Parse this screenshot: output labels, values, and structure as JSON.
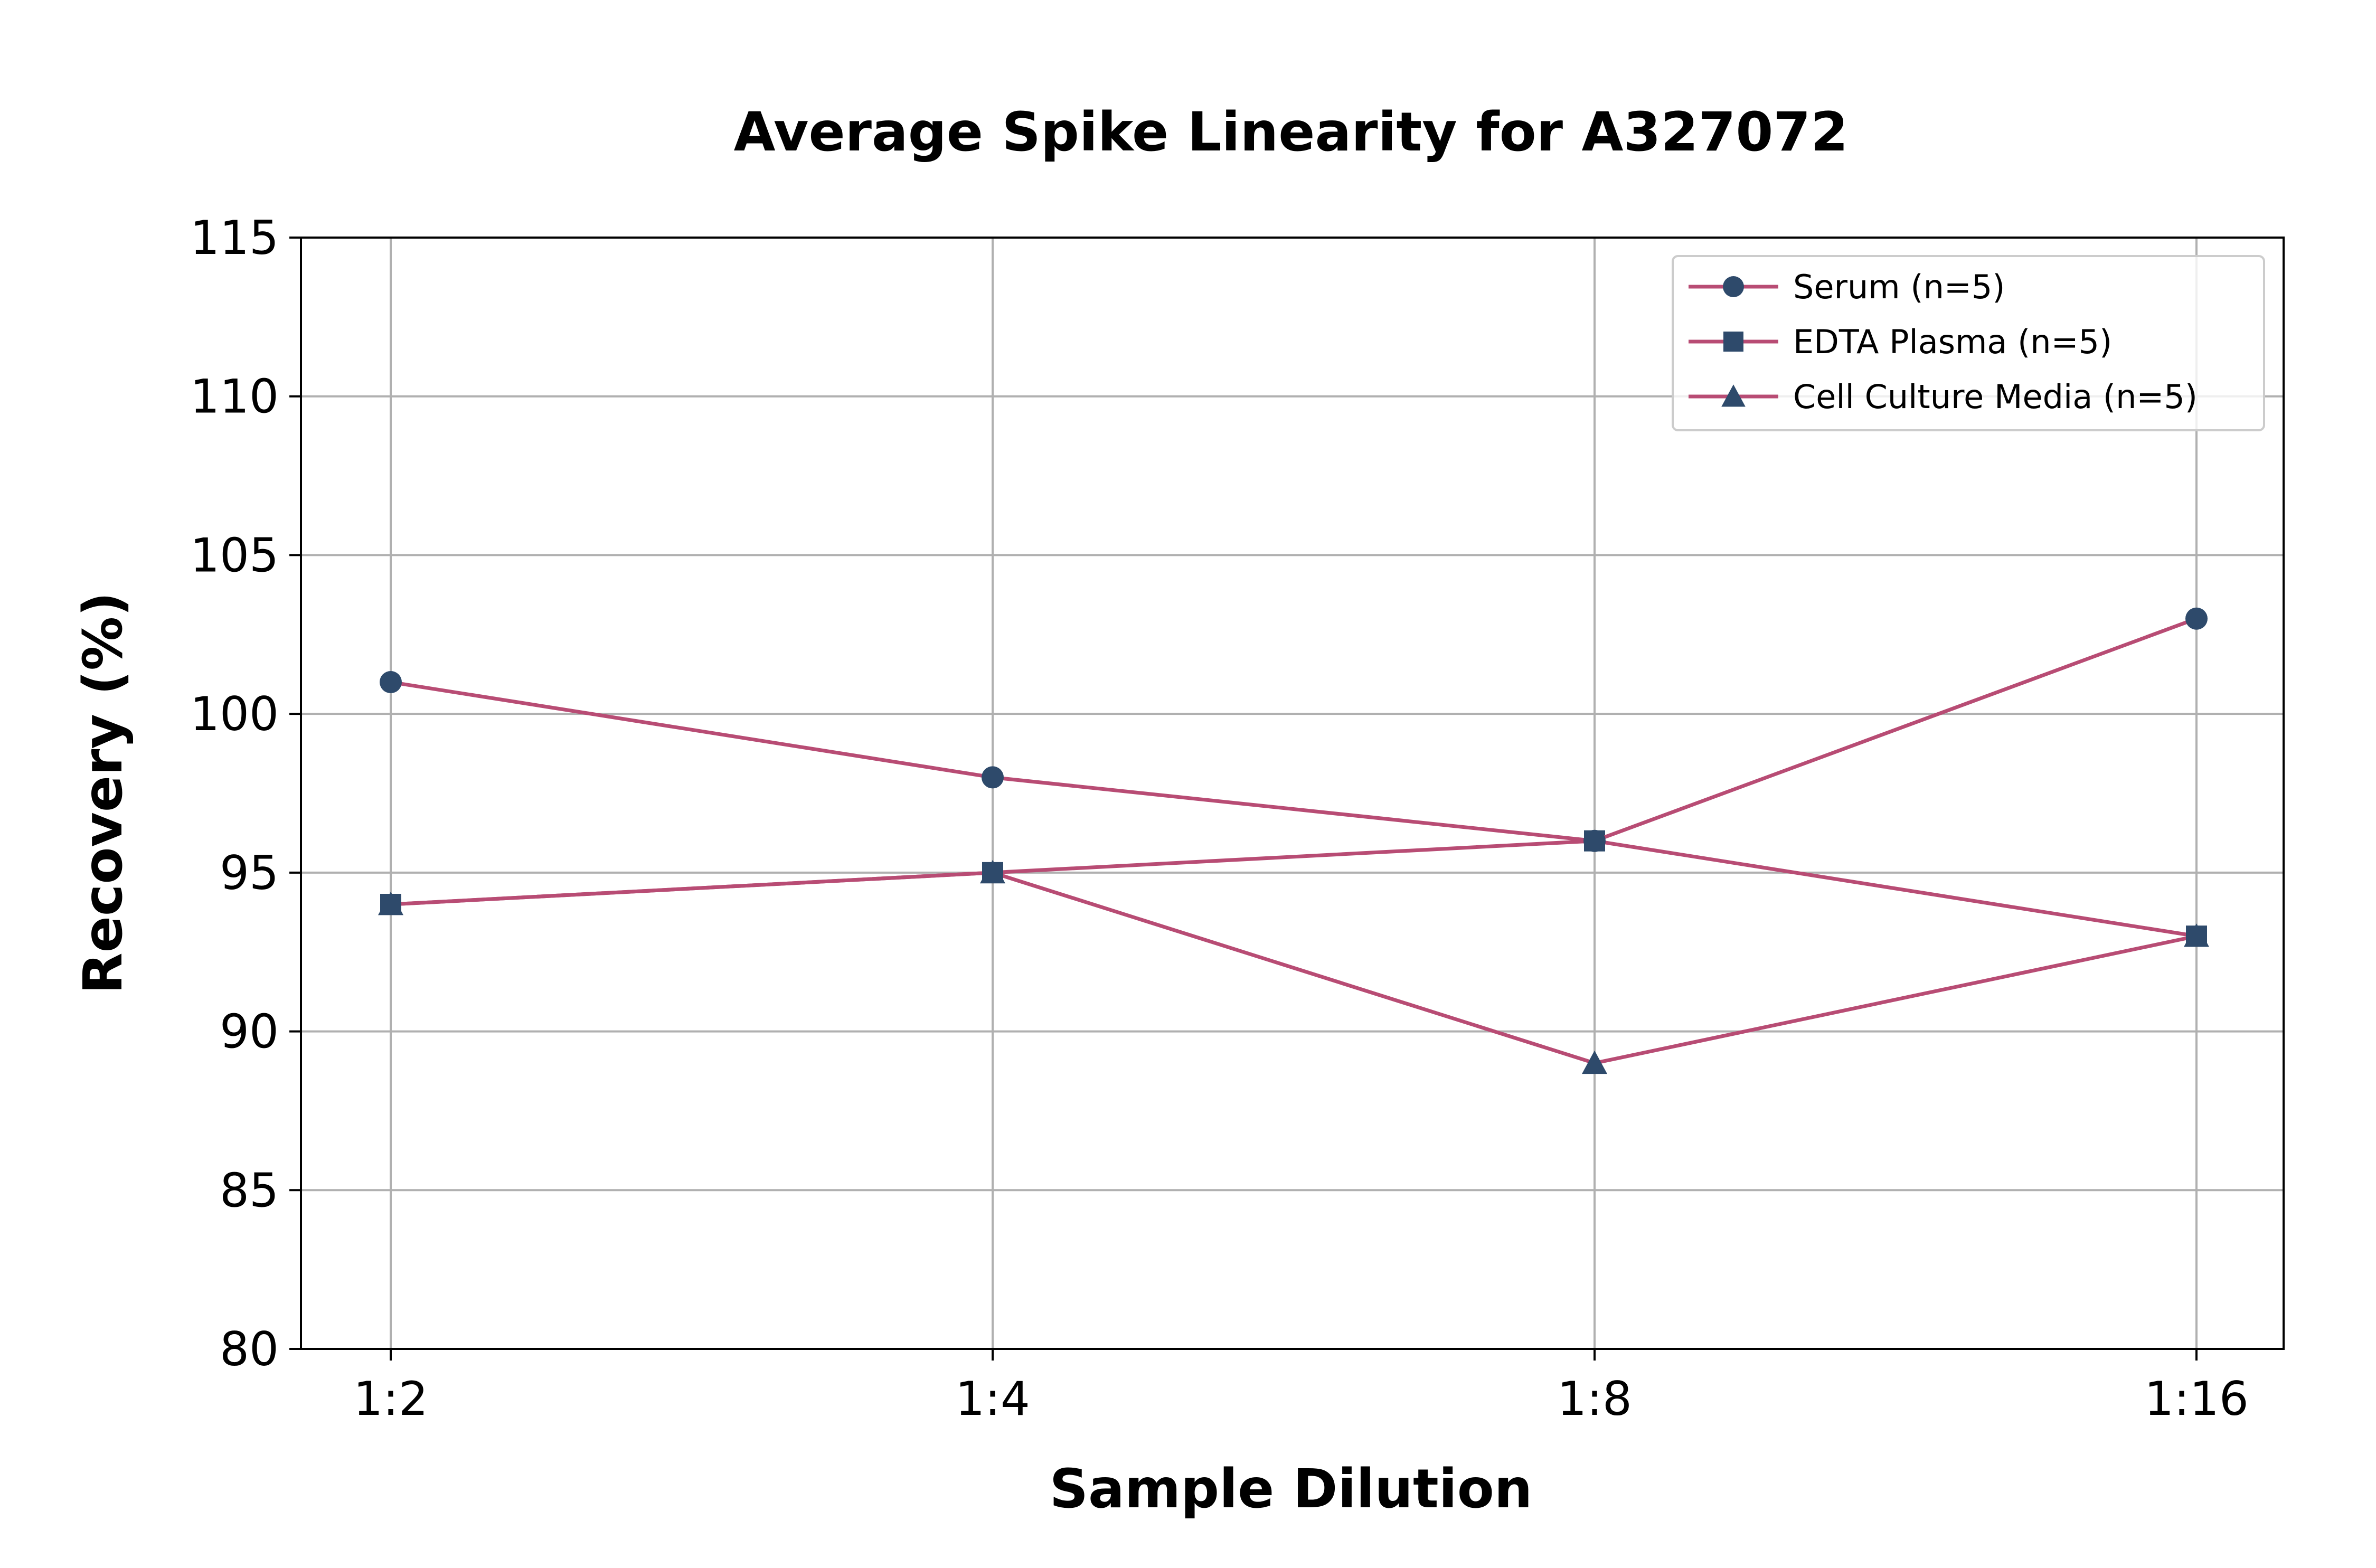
{
  "chart_data": {
    "type": "line",
    "title": "Average Spike Linearity for A327072",
    "xlabel": "Sample Dilution",
    "ylabel": "Recovery (%)",
    "categories": [
      "1:2",
      "1:4",
      "1:8",
      "1:16"
    ],
    "ylim": [
      80,
      115
    ],
    "yticks": [
      80,
      85,
      90,
      95,
      100,
      105,
      110,
      115
    ],
    "grid": true,
    "legend_position": "top-right",
    "line_color": "#b84c74",
    "marker_color": "#2e4a6b",
    "series": [
      {
        "name": "Serum (n=5)",
        "marker": "circle",
        "values": [
          101,
          98,
          96,
          103
        ]
      },
      {
        "name": "EDTA Plasma (n=5)",
        "marker": "square",
        "values": [
          94,
          95,
          96,
          93
        ]
      },
      {
        "name": "Cell Culture Media (n=5)",
        "marker": "triangle",
        "values": [
          94,
          95,
          89,
          93
        ]
      }
    ]
  }
}
